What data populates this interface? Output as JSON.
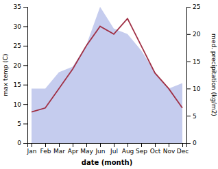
{
  "chart_data": {
    "type": "line",
    "xlabel": "date (month)",
    "ylabel": "max temp (C)",
    "y2label": "med. precipitation (kg/m2)",
    "categories": [
      "Jan",
      "Feb",
      "Mar",
      "Apr",
      "May",
      "Jun",
      "Jul",
      "Aug",
      "Sep",
      "Oct",
      "Nov",
      "Dec"
    ],
    "series": [
      {
        "type": "area",
        "axis": "y2",
        "color": "#c5ccee",
        "values": [
          10.0,
          10.0,
          13.0,
          14.0,
          18.0,
          25.0,
          21.0,
          20.0,
          17.0,
          13.0,
          10.0,
          11.0
        ]
      },
      {
        "type": "line",
        "color": "#a03045",
        "values": [
          8.0,
          9.0,
          14.0,
          19.0,
          25.0,
          30.0,
          28.0,
          32.0,
          25.0,
          18.0,
          14.0,
          9.0
        ]
      }
    ],
    "ylim": [
      0,
      35
    ],
    "yticks": [
      0,
      5,
      10,
      15,
      20,
      25,
      30,
      35
    ],
    "y2lim": [
      0,
      25
    ],
    "y2ticks": [
      0,
      5,
      10,
      15,
      20,
      25
    ],
    "grid": false
  }
}
